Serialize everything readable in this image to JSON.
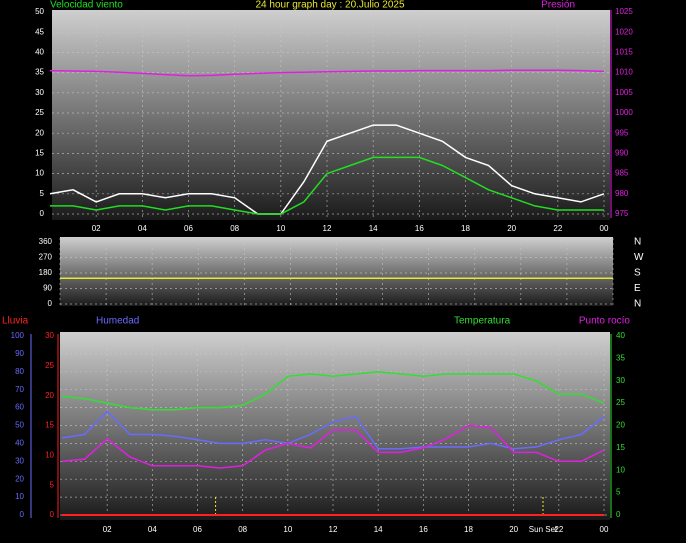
{
  "chart_data": [
    {
      "type": "line",
      "title": "24 hour graph day : 20.Julio 2025",
      "x": [
        0,
        1,
        2,
        3,
        4,
        5,
        6,
        7,
        8,
        9,
        10,
        11,
        12,
        13,
        14,
        15,
        16,
        17,
        18,
        19,
        20,
        21,
        22,
        23,
        24
      ],
      "xlim": [
        0,
        24
      ],
      "xticks": [
        {
          "value": 2,
          "label": "02"
        },
        {
          "value": 4,
          "label": "04"
        },
        {
          "value": 6,
          "label": "06"
        },
        {
          "value": 8,
          "label": "08"
        },
        10,
        12,
        14,
        16,
        18,
        20,
        22,
        {
          "value": 24,
          "label": "00"
        }
      ],
      "ylim": [
        0,
        50
      ],
      "yticks": [
        0,
        5,
        10,
        15,
        20,
        25,
        30,
        35,
        40,
        45,
        50
      ],
      "y2lim": [
        975,
        1025
      ],
      "y2ticks": [
        975,
        980,
        985,
        990,
        995,
        1000,
        1005,
        1010,
        1015,
        1020,
        1025
      ],
      "grid": true,
      "series": [
        {
          "color": "#ffffff",
          "values": [
            5,
            6,
            3,
            5,
            5,
            4,
            5,
            5,
            4,
            0,
            0,
            8,
            18,
            20,
            22,
            22,
            20,
            18,
            14,
            12,
            7,
            5,
            4,
            3,
            5
          ]
        },
        {
          "name": "Velocidad viento",
          "color": "#22dd22",
          "values": [
            2,
            2,
            1,
            2,
            2,
            1,
            2,
            2,
            1,
            0,
            0,
            3,
            10,
            12,
            14,
            14,
            14,
            12,
            9,
            6,
            4,
            2,
            1,
            1,
            1
          ]
        },
        {
          "name": "Presión",
          "color": "#e020e0",
          "axis": "y2",
          "values": [
            1010.5,
            1010.4,
            1010.3,
            1010.1,
            1009.8,
            1009.5,
            1009.2,
            1009.3,
            1009.6,
            1009.8,
            1010.0,
            1010.1,
            1010.2,
            1010.3,
            1010.4,
            1010.4,
            1010.5,
            1010.5,
            1010.5,
            1010.5,
            1010.6,
            1010.6,
            1010.6,
            1010.5,
            1010.3
          ]
        }
      ]
    },
    {
      "type": "line",
      "x": [
        0,
        24
      ],
      "xlim": [
        0,
        24
      ],
      "ylim": [
        0,
        360
      ],
      "yticks": [
        0,
        90,
        180,
        270,
        360
      ],
      "y2lim": [
        0,
        360
      ],
      "y2ticks": [
        {
          "value": 0,
          "label": "N"
        },
        {
          "value": 90,
          "label": "E"
        },
        {
          "value": 180,
          "label": "S"
        },
        {
          "value": 270,
          "label": "W"
        },
        {
          "value": 360,
          "label": "N"
        }
      ],
      "grid": true,
      "series": [
        {
          "color": "#e8e830",
          "values": [
            150,
            150
          ]
        }
      ]
    },
    {
      "type": "line",
      "x": [
        0,
        1,
        2,
        3,
        4,
        5,
        6,
        7,
        8,
        9,
        10,
        11,
        12,
        13,
        14,
        15,
        16,
        17,
        18,
        19,
        20,
        21,
        22,
        23,
        24
      ],
      "xlim": [
        0,
        24
      ],
      "xticks": [
        {
          "value": 2,
          "label": "02"
        },
        {
          "value": 4,
          "label": "04"
        },
        {
          "value": 6,
          "label": "06"
        },
        {
          "value": 8,
          "label": "08"
        },
        10,
        12,
        14,
        16,
        18,
        20,
        22,
        {
          "value": 24,
          "label": "00"
        }
      ],
      "ylim": [
        0,
        100
      ],
      "yticks": [
        0,
        10,
        20,
        30,
        40,
        50,
        60,
        70,
        80,
        90,
        100
      ],
      "y2lim": [
        0,
        40
      ],
      "y2ticks": [
        0,
        5,
        10,
        15,
        20,
        25,
        30,
        35,
        40
      ],
      "y3lim": [
        0,
        30
      ],
      "y3ticks": [
        0,
        5,
        10,
        15,
        20,
        25,
        30
      ],
      "grid": true,
      "vlines": [
        {
          "x": 6.8
        },
        {
          "x": 21.3,
          "label": "Sun Set"
        }
      ],
      "series": [
        {
          "name": "Lluvia",
          "color": "#ff2020",
          "axis": "y3",
          "values": [
            0,
            0,
            0,
            0,
            0,
            0,
            0,
            0,
            0,
            0,
            0,
            0,
            0,
            0,
            0,
            0,
            0,
            0,
            0,
            0,
            0,
            0,
            0,
            0,
            0
          ]
        },
        {
          "name": "Humedad",
          "color": "#6a6aff",
          "values": [
            43,
            45,
            58,
            45,
            45,
            44,
            42,
            40,
            40,
            42,
            40,
            45,
            52,
            55,
            37,
            37,
            38,
            38,
            38,
            40,
            37,
            38,
            42,
            45,
            55
          ]
        },
        {
          "name": "Temperatura",
          "color": "#30e030",
          "axis": "y2",
          "values": [
            26.5,
            26,
            25,
            24,
            23.5,
            23.5,
            24,
            24,
            24.5,
            27,
            31,
            31.5,
            31,
            31.5,
            32,
            31.5,
            31,
            31.5,
            31.5,
            31.5,
            31.5,
            30,
            27,
            27,
            25
          ]
        },
        {
          "name": "Punto rocío",
          "color": "#e020e0",
          "axis": "y2",
          "values": [
            12,
            12.5,
            17,
            13,
            11,
            11,
            11,
            10.5,
            11,
            14.5,
            16,
            15,
            19,
            19,
            14,
            14,
            15,
            17,
            20,
            19.5,
            14,
            14,
            12,
            12,
            14.5
          ]
        }
      ]
    }
  ]
}
